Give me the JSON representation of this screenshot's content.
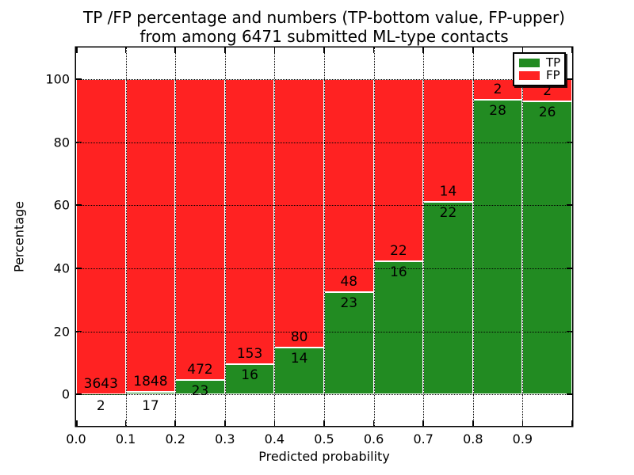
{
  "figure": {
    "title_line1": "TP /FP percentage and numbers (TP-bottom value, FP-upper)",
    "title_line2": "from among 6471 submitted ML-type contacts"
  },
  "chart_data": {
    "type": "bar",
    "stacked": true,
    "normalized_to_percent": true,
    "title": "TP /FP percentage and numbers (TP-bottom value, FP-upper) from among 6471 submitted ML-type contacts",
    "xlabel": "Predicted probability",
    "ylabel": "Percentage",
    "total_submitted": 6471,
    "bin_width": 0.1,
    "x": [
      0.0,
      0.1,
      0.2,
      0.3,
      0.4,
      0.5,
      0.6,
      0.7,
      0.8,
      0.9
    ],
    "series": [
      {
        "name": "TP",
        "color": "#228b22",
        "counts": [
          2,
          17,
          23,
          16,
          14,
          23,
          16,
          22,
          28,
          26
        ]
      },
      {
        "name": "FP",
        "color": "#ff2222",
        "counts": [
          3643,
          1848,
          472,
          153,
          80,
          48,
          22,
          14,
          2,
          2
        ]
      }
    ],
    "bar_label_note": "TP count printed at bottom of stack, FP count printed above it",
    "x_tick_labels": [
      "0.0",
      "0.1",
      "0.2",
      "0.3",
      "0.4",
      "0.5",
      "0.6",
      "0.7",
      "0.8",
      "0.9"
    ],
    "y_ticks": [
      0,
      20,
      40,
      60,
      80,
      100
    ],
    "y_tick_labels": [
      "0",
      "20",
      "40",
      "60",
      "80",
      "100"
    ],
    "xlim": [
      0,
      1
    ],
    "ylim": [
      -10,
      110
    ],
    "grid": "dotted",
    "legend_position": "upper right"
  },
  "legend": {
    "items": [
      {
        "label": "TP",
        "color": "#228b22"
      },
      {
        "label": "FP",
        "color": "#ff2222"
      }
    ]
  }
}
